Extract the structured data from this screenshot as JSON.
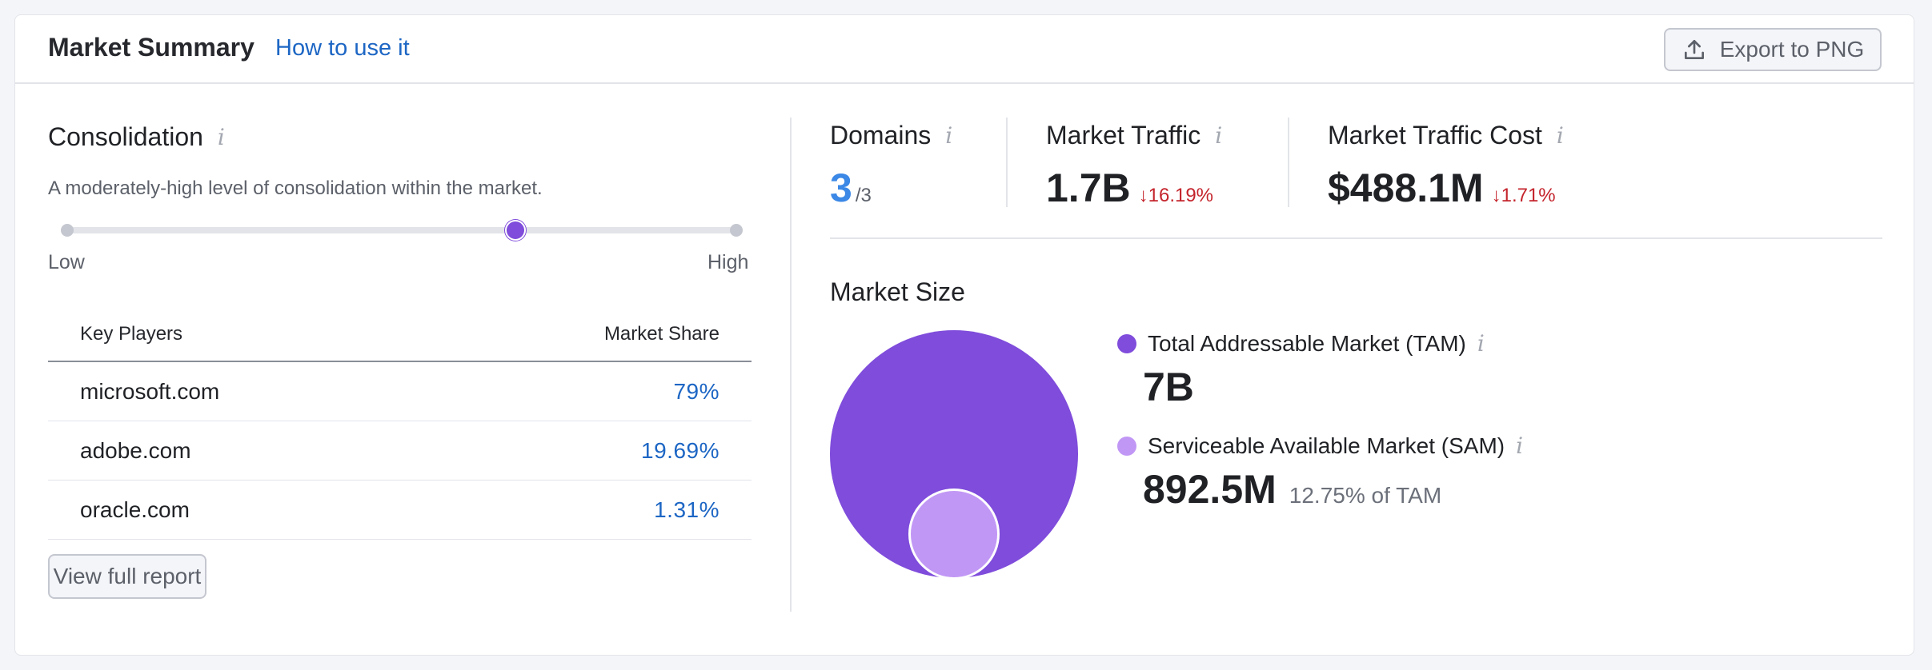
{
  "header": {
    "title": "Market Summary",
    "help_link": "How to use it",
    "export_label": "Export to PNG"
  },
  "consolidation": {
    "title": "Consolidation",
    "description": "A moderately-high level of consolidation within the market.",
    "level": 0.67,
    "low_label": "Low",
    "high_label": "High"
  },
  "key_players": {
    "col_player": "Key Players",
    "col_share": "Market Share",
    "rows": [
      {
        "domain": "microsoft.com",
        "share": "79%"
      },
      {
        "domain": "adobe.com",
        "share": "19.69%"
      },
      {
        "domain": "oracle.com",
        "share": "1.31%"
      }
    ],
    "view_button": "View full report"
  },
  "metrics": {
    "domains": {
      "label": "Domains",
      "value": "3",
      "total": "/3"
    },
    "traffic": {
      "label": "Market Traffic",
      "value": "1.7B",
      "delta": "↓16.19%"
    },
    "traffic_cost": {
      "label": "Market Traffic Cost",
      "value": "$488.1M",
      "delta": "↓1.71%"
    }
  },
  "market_size": {
    "title": "Market Size",
    "tam": {
      "label": "Total Addressable Market (TAM)",
      "value": "7B",
      "color": "#7f4cdb"
    },
    "sam": {
      "label": "Serviceable Available Market (SAM)",
      "value": "892.5M",
      "share_of_tam": "12.75% of TAM",
      "color": "#c197f5"
    }
  },
  "colors": {
    "accent": "#7f4cdb",
    "link": "#1d66c4",
    "negative": "#c4242c"
  }
}
